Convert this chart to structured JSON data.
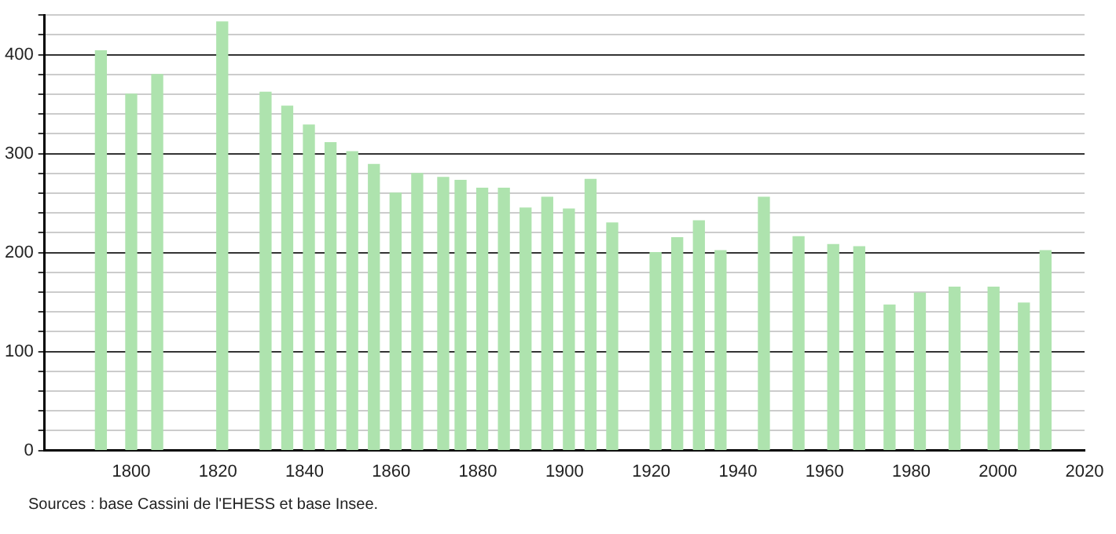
{
  "chart_data": {
    "type": "bar",
    "x": [
      1793,
      1800,
      1806,
      1821,
      1831,
      1836,
      1841,
      1846,
      1851,
      1856,
      1861,
      1866,
      1872,
      1876,
      1881,
      1886,
      1891,
      1896,
      1901,
      1906,
      1911,
      1921,
      1926,
      1931,
      1936,
      1946,
      1954,
      1962,
      1968,
      1975,
      1982,
      1990,
      1999,
      2006,
      2011
    ],
    "values": [
      404,
      360,
      380,
      433,
      362,
      348,
      329,
      311,
      302,
      289,
      260,
      280,
      276,
      273,
      265,
      265,
      245,
      256,
      244,
      274,
      230,
      200,
      215,
      232,
      202,
      256,
      216,
      208,
      206,
      147,
      159,
      165,
      165,
      149,
      202
    ],
    "color": "#aee3ae",
    "xlim": [
      1780,
      2020
    ],
    "xticks": [
      {
        "value": 1780,
        "label": null
      },
      1800,
      1820,
      1840,
      1860,
      1880,
      1900,
      1920,
      1940,
      1960,
      1980,
      2000,
      2020
    ],
    "ylim": [
      0,
      440
    ],
    "yticks": [
      0,
      {
        "value": 20,
        "label": null
      },
      {
        "value": 40,
        "label": null
      },
      {
        "value": 60,
        "label": null
      },
      {
        "value": 80,
        "label": null
      },
      100,
      {
        "value": 120,
        "label": null
      },
      {
        "value": 140,
        "label": null
      },
      {
        "value": 160,
        "label": null
      },
      {
        "value": 180,
        "label": null
      },
      200,
      {
        "value": 220,
        "label": null
      },
      {
        "value": 240,
        "label": null
      },
      {
        "value": 260,
        "label": null
      },
      {
        "value": 280,
        "label": null
      },
      300,
      {
        "value": 320,
        "label": null
      },
      {
        "value": 340,
        "label": null
      },
      {
        "value": 360,
        "label": null
      },
      {
        "value": 380,
        "label": null
      },
      400,
      {
        "value": 420,
        "label": null
      },
      {
        "value": 440,
        "label": null
      }
    ],
    "grid": "y",
    "annotations": [
      "Sources : base Cassini de l'EHESS et base Insee."
    ]
  }
}
